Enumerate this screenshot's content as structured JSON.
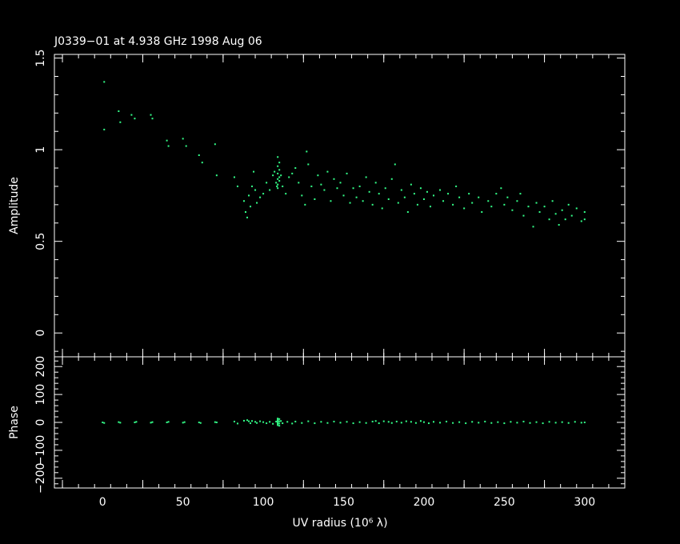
{
  "title": "J0339−01 at 4.938 GHz 1998 Aug 06",
  "chart_data": [
    {
      "panel": "amplitude",
      "type": "scatter",
      "ylabel": "Amplitude",
      "xlim": [
        -30,
        325
      ],
      "ylim": [
        -0.13,
        1.52
      ],
      "yticks_major": [
        0,
        0.5,
        1,
        1.5
      ],
      "ytick_labels": [
        "0",
        "0.5",
        "1",
        "1.5"
      ],
      "grid": false,
      "color": "#33ff88",
      "points": [
        [
          1,
          1.37
        ],
        [
          1,
          1.11
        ],
        [
          10,
          1.21
        ],
        [
          11,
          1.15
        ],
        [
          18,
          1.19
        ],
        [
          20,
          1.17
        ],
        [
          30,
          1.19
        ],
        [
          31,
          1.17
        ],
        [
          40,
          1.05
        ],
        [
          41,
          1.02
        ],
        [
          50,
          1.06
        ],
        [
          52,
          1.02
        ],
        [
          60,
          0.97
        ],
        [
          62,
          0.93
        ],
        [
          70,
          1.03
        ],
        [
          71,
          0.86
        ],
        [
          82,
          0.85
        ],
        [
          84,
          0.8
        ],
        [
          88,
          0.72
        ],
        [
          89,
          0.66
        ],
        [
          90,
          0.63
        ],
        [
          91,
          0.75
        ],
        [
          92,
          0.69
        ],
        [
          93,
          0.8
        ],
        [
          94,
          0.88
        ],
        [
          95,
          0.78
        ],
        [
          96,
          0.71
        ],
        [
          98,
          0.74
        ],
        [
          100,
          0.76
        ],
        [
          102,
          0.82
        ],
        [
          104,
          0.78
        ],
        [
          106,
          0.86
        ],
        [
          107,
          0.88
        ],
        [
          108,
          0.82
        ],
        [
          108.5,
          0.8
        ],
        [
          109,
          0.96
        ],
        [
          109,
          0.91
        ],
        [
          109,
          0.87
        ],
        [
          109,
          0.84
        ],
        [
          109,
          0.81
        ],
        [
          109,
          0.79
        ],
        [
          110,
          0.93
        ],
        [
          110,
          0.89
        ],
        [
          110,
          0.85
        ],
        [
          110,
          0.83
        ],
        [
          111,
          0.86
        ],
        [
          112,
          0.8
        ],
        [
          114,
          0.76
        ],
        [
          116,
          0.85
        ],
        [
          118,
          0.87
        ],
        [
          120,
          0.9
        ],
        [
          122,
          0.82
        ],
        [
          124,
          0.75
        ],
        [
          126,
          0.7
        ],
        [
          127,
          0.99
        ],
        [
          128,
          0.92
        ],
        [
          130,
          0.8
        ],
        [
          132,
          0.73
        ],
        [
          134,
          0.86
        ],
        [
          136,
          0.81
        ],
        [
          138,
          0.78
        ],
        [
          140,
          0.88
        ],
        [
          142,
          0.72
        ],
        [
          144,
          0.84
        ],
        [
          146,
          0.79
        ],
        [
          148,
          0.82
        ],
        [
          150,
          0.75
        ],
        [
          152,
          0.87
        ],
        [
          154,
          0.71
        ],
        [
          156,
          0.79
        ],
        [
          158,
          0.74
        ],
        [
          160,
          0.8
        ],
        [
          162,
          0.72
        ],
        [
          164,
          0.85
        ],
        [
          166,
          0.77
        ],
        [
          168,
          0.7
        ],
        [
          170,
          0.82
        ],
        [
          172,
          0.76
        ],
        [
          174,
          0.68
        ],
        [
          176,
          0.79
        ],
        [
          178,
          0.73
        ],
        [
          180,
          0.84
        ],
        [
          182,
          0.92
        ],
        [
          184,
          0.71
        ],
        [
          186,
          0.78
        ],
        [
          188,
          0.74
        ],
        [
          190,
          0.66
        ],
        [
          192,
          0.81
        ],
        [
          194,
          0.76
        ],
        [
          196,
          0.7
        ],
        [
          198,
          0.79
        ],
        [
          200,
          0.73
        ],
        [
          202,
          0.77
        ],
        [
          204,
          0.69
        ],
        [
          206,
          0.75
        ],
        [
          210,
          0.78
        ],
        [
          212,
          0.72
        ],
        [
          215,
          0.76
        ],
        [
          218,
          0.7
        ],
        [
          220,
          0.8
        ],
        [
          222,
          0.74
        ],
        [
          225,
          0.68
        ],
        [
          228,
          0.76
        ],
        [
          230,
          0.71
        ],
        [
          234,
          0.74
        ],
        [
          236,
          0.66
        ],
        [
          240,
          0.72
        ],
        [
          242,
          0.69
        ],
        [
          245,
          0.76
        ],
        [
          248,
          0.79
        ],
        [
          250,
          0.7
        ],
        [
          252,
          0.74
        ],
        [
          255,
          0.67
        ],
        [
          258,
          0.72
        ],
        [
          260,
          0.76
        ],
        [
          262,
          0.64
        ],
        [
          265,
          0.69
        ],
        [
          268,
          0.58
        ],
        [
          270,
          0.71
        ],
        [
          272,
          0.66
        ],
        [
          275,
          0.69
        ],
        [
          278,
          0.62
        ],
        [
          280,
          0.72
        ],
        [
          282,
          0.65
        ],
        [
          284,
          0.59
        ],
        [
          286,
          0.67
        ],
        [
          288,
          0.62
        ],
        [
          290,
          0.7
        ],
        [
          292,
          0.64
        ],
        [
          295,
          0.68
        ],
        [
          298,
          0.61
        ],
        [
          300,
          0.66
        ],
        [
          300,
          0.62
        ]
      ]
    },
    {
      "panel": "phase",
      "type": "scatter",
      "ylabel": "Phase",
      "xlabel": "UV radius  (10⁶ λ)",
      "xlim": [
        -30,
        325
      ],
      "ylim": [
        -235,
        235
      ],
      "yticks_major": [
        -200,
        -100,
        0,
        100,
        200
      ],
      "ytick_labels": [
        "−200",
        "−100",
        "0",
        "100",
        "200"
      ],
      "xticks_major": [
        0,
        50,
        100,
        150,
        200,
        250,
        300
      ],
      "xtick_labels": [
        "0",
        "50",
        "100",
        "150",
        "200",
        "250",
        "300"
      ],
      "grid": false,
      "color": "#33ff88",
      "points": [
        [
          0,
          0
        ],
        [
          1,
          -2
        ],
        [
          10,
          1
        ],
        [
          11,
          -1
        ],
        [
          20,
          0
        ],
        [
          21,
          2
        ],
        [
          30,
          -1
        ],
        [
          31,
          1
        ],
        [
          40,
          0
        ],
        [
          41,
          2
        ],
        [
          50,
          -1
        ],
        [
          51,
          1
        ],
        [
          60,
          0
        ],
        [
          61,
          -2
        ],
        [
          70,
          1
        ],
        [
          71,
          0
        ],
        [
          82,
          3
        ],
        [
          84,
          -4
        ],
        [
          88,
          6
        ],
        [
          90,
          8
        ],
        [
          91,
          4
        ],
        [
          92,
          -3
        ],
        [
          93,
          5
        ],
        [
          95,
          2
        ],
        [
          96,
          -2
        ],
        [
          98,
          4
        ],
        [
          100,
          1
        ],
        [
          102,
          -3
        ],
        [
          104,
          2
        ],
        [
          106,
          -5
        ],
        [
          108,
          3
        ],
        [
          109,
          14
        ],
        [
          109,
          10
        ],
        [
          109,
          6
        ],
        [
          109,
          2
        ],
        [
          109,
          -2
        ],
        [
          109,
          -6
        ],
        [
          109,
          -10
        ],
        [
          110,
          12
        ],
        [
          110,
          4
        ],
        [
          110,
          -4
        ],
        [
          110,
          -12
        ],
        [
          111,
          5
        ],
        [
          112,
          -3
        ],
        [
          115,
          2
        ],
        [
          118,
          -4
        ],
        [
          120,
          3
        ],
        [
          124,
          -2
        ],
        [
          128,
          4
        ],
        [
          132,
          -3
        ],
        [
          136,
          2
        ],
        [
          140,
          -2
        ],
        [
          144,
          3
        ],
        [
          148,
          -1
        ],
        [
          152,
          2
        ],
        [
          156,
          -3
        ],
        [
          160,
          1
        ],
        [
          164,
          -2
        ],
        [
          168,
          3
        ],
        [
          170,
          5
        ],
        [
          172,
          -3
        ],
        [
          175,
          4
        ],
        [
          178,
          2
        ],
        [
          180,
          -2
        ],
        [
          183,
          3
        ],
        [
          186,
          -1
        ],
        [
          189,
          4
        ],
        [
          192,
          2
        ],
        [
          195,
          -2
        ],
        [
          198,
          5
        ],
        [
          200,
          1
        ],
        [
          203,
          -3
        ],
        [
          206,
          2
        ],
        [
          210,
          -1
        ],
        [
          214,
          3
        ],
        [
          218,
          -2
        ],
        [
          222,
          1
        ],
        [
          226,
          -3
        ],
        [
          230,
          2
        ],
        [
          234,
          -1
        ],
        [
          238,
          3
        ],
        [
          242,
          -2
        ],
        [
          246,
          1
        ],
        [
          250,
          -3
        ],
        [
          254,
          2
        ],
        [
          258,
          -1
        ],
        [
          262,
          3
        ],
        [
          266,
          -2
        ],
        [
          270,
          1
        ],
        [
          274,
          -3
        ],
        [
          278,
          2
        ],
        [
          282,
          -1
        ],
        [
          286,
          1
        ],
        [
          290,
          -2
        ],
        [
          294,
          2
        ],
        [
          298,
          -1
        ],
        [
          300,
          0
        ]
      ]
    }
  ]
}
